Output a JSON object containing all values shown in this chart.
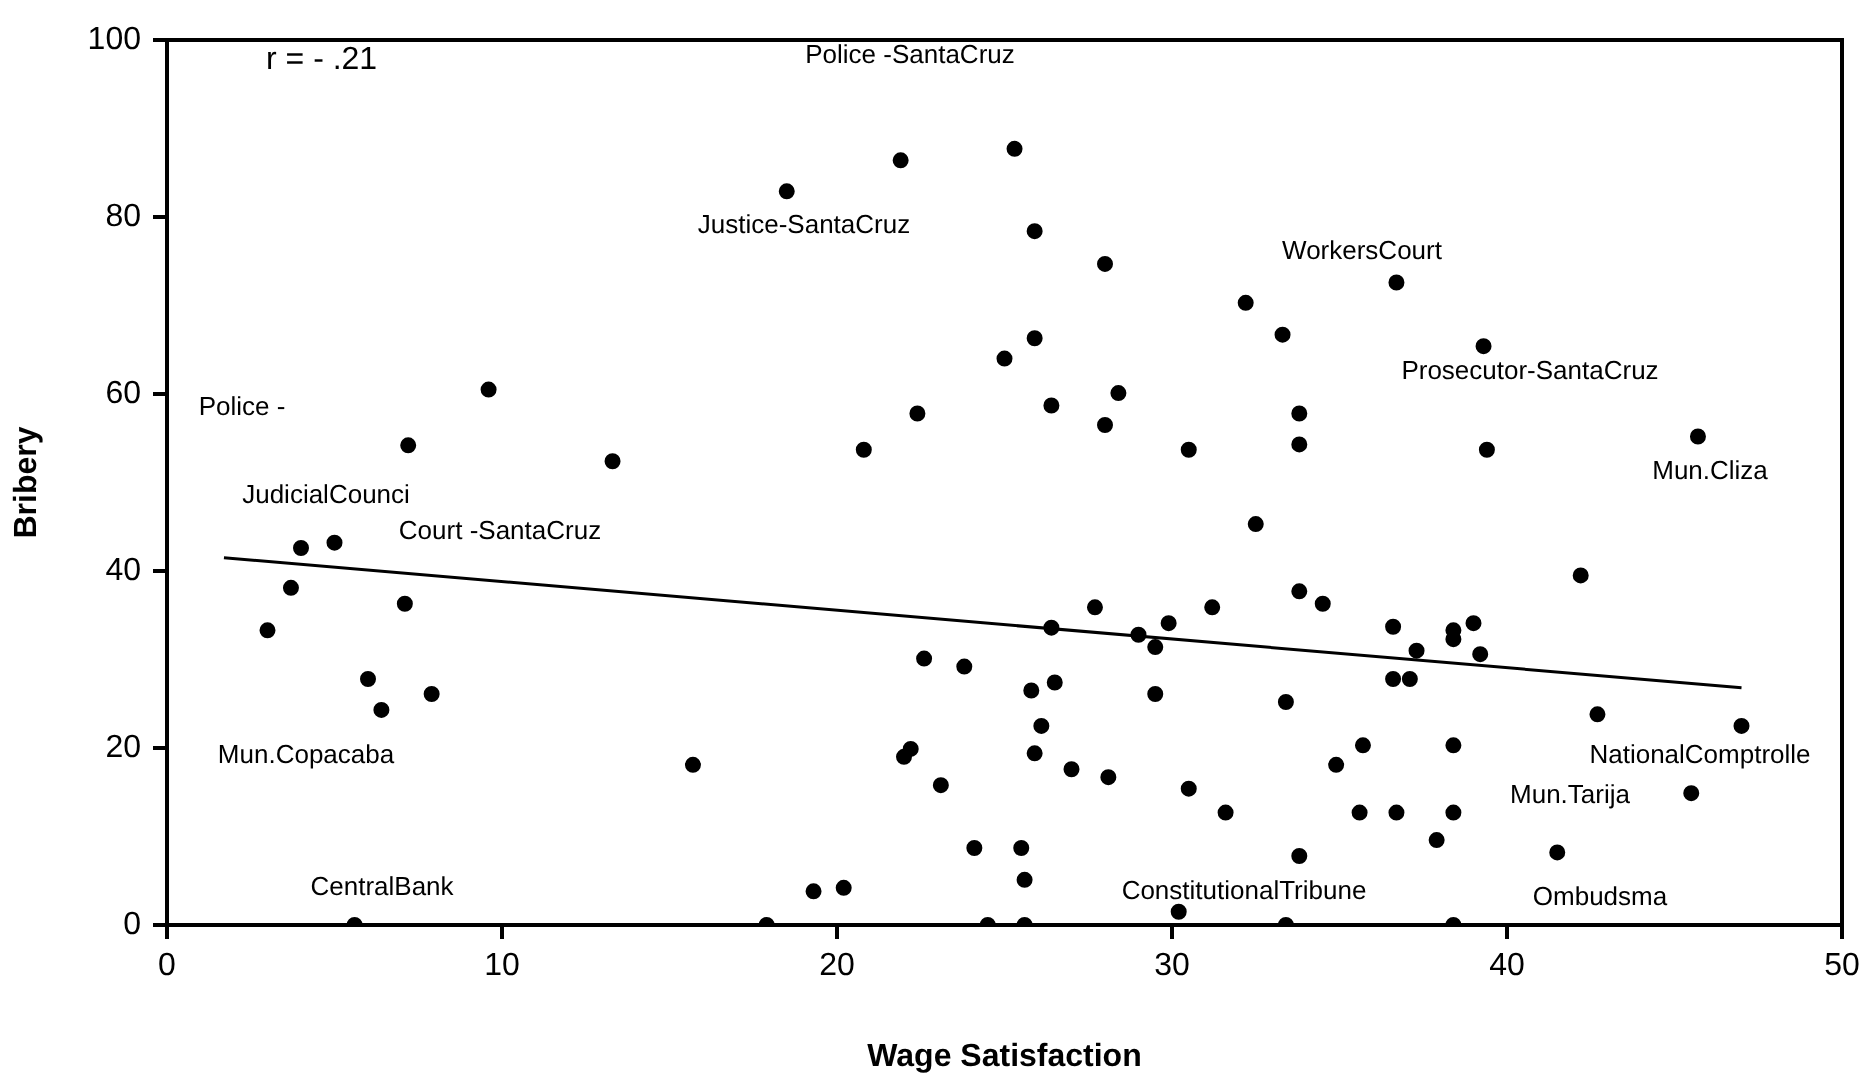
{
  "chart_data": {
    "type": "scatter",
    "xlabel": "Wage Satisfaction",
    "ylabel": "Bribery",
    "xlim": [
      0,
      50
    ],
    "ylim": [
      0,
      100
    ],
    "xticks": [
      0,
      10,
      20,
      30,
      40,
      50
    ],
    "yticks": [
      0,
      20,
      40,
      60,
      80,
      100
    ],
    "grid": false,
    "legend": false,
    "marker": "circle",
    "annotations": [
      "r = - .21",
      "Police -SantaCruz",
      "Justice-SantaCruz",
      "WorkersCourt",
      "Prosecutor-SantaCruz",
      "Mun.Cliza",
      "Police -",
      "JudicialCounci",
      "Court -SantaCruz",
      "Mun.Copacaba",
      "CentralBank",
      "ConstitutionalTribune",
      "Ombudsma",
      "NationalComptrolle",
      "Mun.Tarija"
    ],
    "series": [
      {
        "color": "#000000",
        "x": [
          9.6,
          7.2,
          13.3,
          4.0,
          5.0,
          3.7,
          7.1,
          3.0,
          6.0,
          7.9,
          6.4,
          15.7,
          5.6,
          18.5,
          21.9,
          25.3,
          25.9,
          28.0,
          32.2,
          25.9,
          25.0,
          28.4,
          22.4,
          26.4,
          28.0,
          20.8,
          30.5,
          32.5,
          27.7,
          31.2,
          26.4,
          29.9,
          29.0,
          29.5,
          22.6,
          23.8,
          26.5,
          25.8,
          29.5,
          26.1,
          22.2,
          22.0,
          25.9,
          23.1,
          27.0,
          28.1,
          30.5,
          31.6,
          24.1,
          25.5,
          25.6,
          19.3,
          20.2,
          17.9,
          24.5,
          25.6,
          30.2,
          36.7,
          33.3,
          39.3,
          33.8,
          33.8,
          39.4,
          45.7,
          42.2,
          33.8,
          34.5,
          36.6,
          38.4,
          38.4,
          39.0,
          37.3,
          39.2,
          36.6,
          37.1,
          33.4,
          42.7,
          47.0,
          35.7,
          38.4,
          34.9,
          45.5,
          35.6,
          36.7,
          38.4,
          37.9,
          33.8,
          41.5,
          33.4,
          38.4
        ],
        "values": [
          60.5,
          54.2,
          52.4,
          42.6,
          43.2,
          38.1,
          36.3,
          33.3,
          27.8,
          26.1,
          24.3,
          18.1,
          0,
          82.9,
          86.4,
          87.7,
          78.4,
          74.7,
          70.3,
          66.3,
          64.0,
          60.1,
          57.8,
          58.7,
          56.5,
          53.7,
          53.7,
          45.3,
          35.9,
          35.9,
          33.6,
          34.1,
          32.8,
          31.4,
          30.1,
          29.2,
          27.4,
          26.5,
          26.1,
          22.5,
          19.9,
          19.0,
          19.4,
          15.8,
          17.6,
          16.7,
          15.4,
          12.7,
          8.7,
          8.7,
          5.1,
          3.8,
          4.2,
          0,
          0,
          0,
          1.5,
          72.6,
          66.7,
          65.4,
          57.8,
          54.3,
          53.7,
          55.2,
          39.5,
          37.7,
          36.3,
          33.7,
          33.3,
          32.3,
          34.1,
          31.0,
          30.6,
          27.8,
          27.8,
          25.2,
          23.8,
          22.5,
          20.3,
          20.3,
          18.1,
          14.9,
          12.7,
          12.7,
          12.7,
          9.6,
          7.8,
          8.2,
          0,
          0
        ]
      },
      {
        "type": "line",
        "marker": "none",
        "color": "#000000",
        "x": [
          1.7,
          47
        ],
        "values": [
          41.5,
          26.8
        ]
      }
    ]
  }
}
